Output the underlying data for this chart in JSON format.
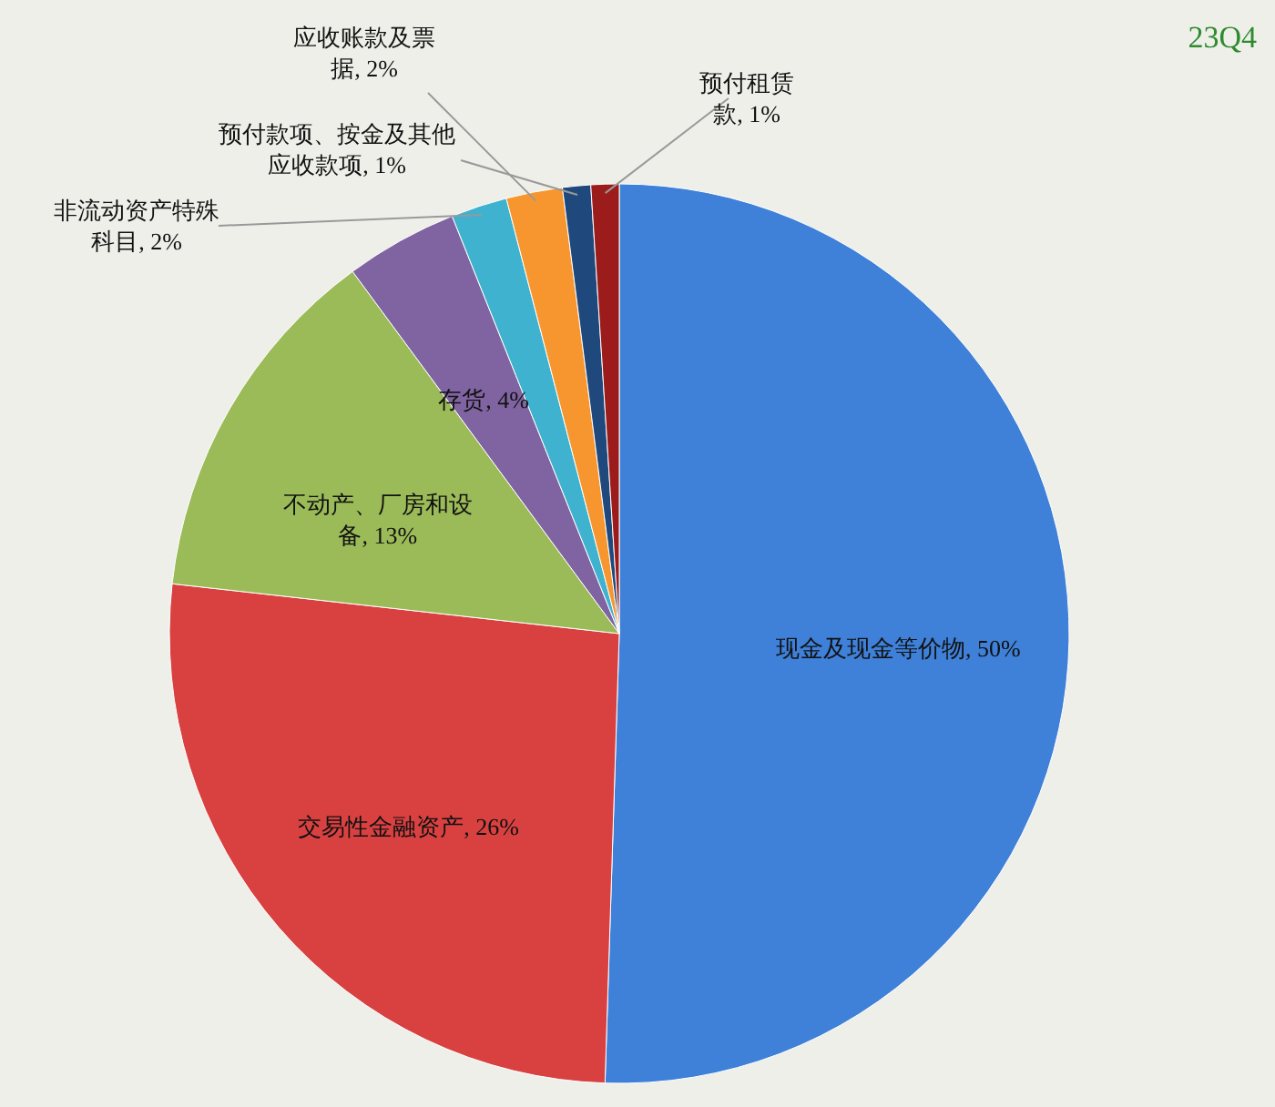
{
  "chart_data": {
    "type": "pie",
    "title": "23Q4",
    "categories": [
      "现金及现金等价物",
      "交易性金融资产",
      "不动产、厂房和设备",
      "存货",
      "非流动资产特殊科目",
      "应收账款及票据",
      "预付款项、按金及其他应收款项",
      "预付租赁款"
    ],
    "values": [
      50,
      26,
      13,
      4,
      2,
      2,
      1,
      1
    ],
    "value_labels": [
      "50%",
      "26%",
      "13%",
      "4%",
      "2%",
      "2%",
      "1%",
      "1%"
    ],
    "colors": [
      "#3f80d8",
      "#d94141",
      "#9bbb59",
      "#8064a2",
      "#3fb2d0",
      "#f7962e",
      "#1f497d",
      "#9c1c1c"
    ],
    "legend": false
  }
}
